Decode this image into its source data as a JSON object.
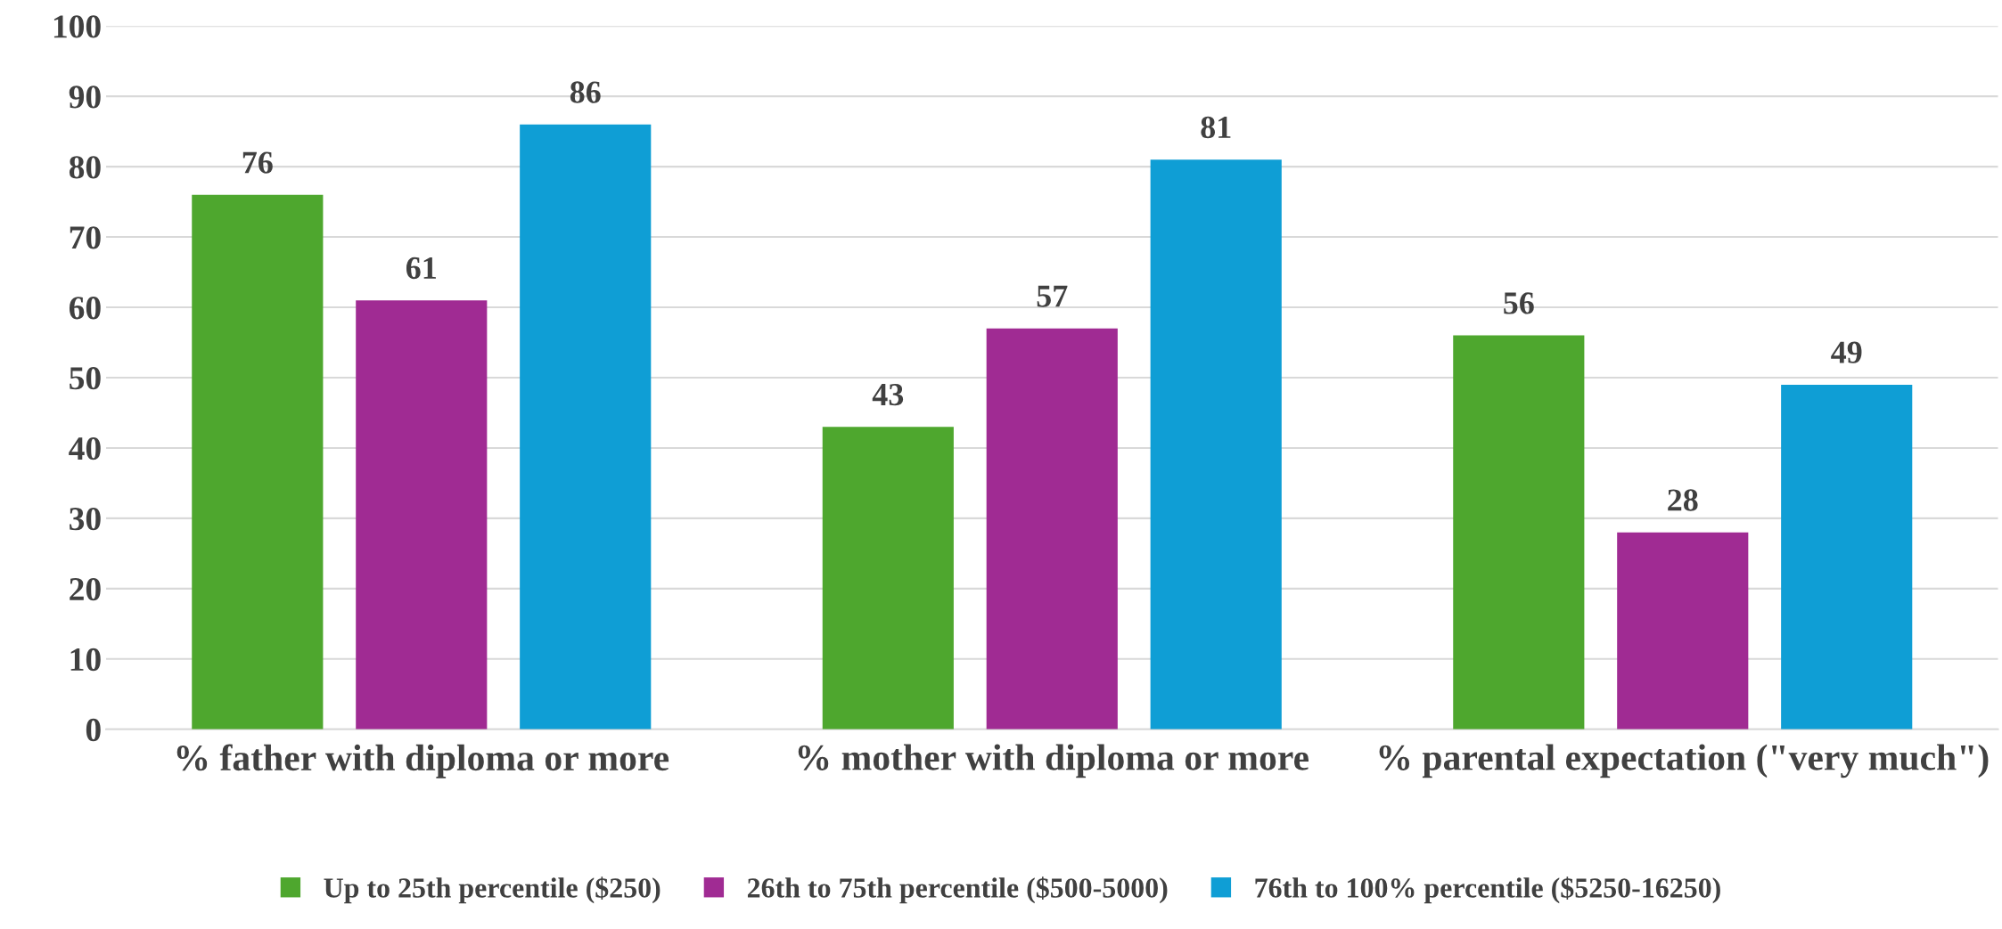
{
  "chart_data": {
    "type": "bar",
    "categories": [
      "% father with diploma or more",
      "% mother with diploma or more",
      "% parental expectation (\"very much\")"
    ],
    "series": [
      {
        "name": "Up to 25th percentile ($250)",
        "color": "#4ea72e",
        "values": [
          76,
          43,
          56
        ]
      },
      {
        "name": "26th to 75th percentile ($500-5000)",
        "color": "#a02b93",
        "values": [
          61,
          57,
          28
        ]
      },
      {
        "name": "76th to 100% percentile ($5250-16250)",
        "color": "#0f9ed5",
        "values": [
          86,
          81,
          49
        ]
      }
    ],
    "ylim": [
      0,
      100
    ],
    "yticks": [
      0,
      10,
      20,
      30,
      40,
      50,
      60,
      70,
      80,
      90,
      100
    ],
    "grid": "y",
    "legend": "bottom",
    "data_labels": true
  }
}
